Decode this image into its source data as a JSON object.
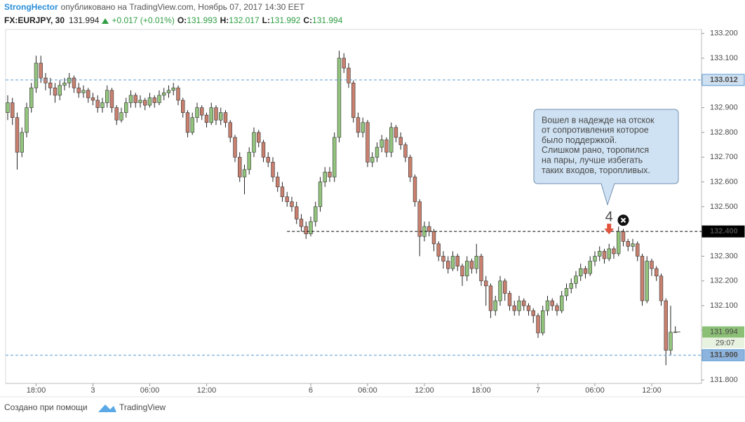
{
  "chart_data": {
    "type": "candlestick",
    "author": "StrongHector",
    "published": "опубликовано на TradingView.com, Ноябрь 07, 2017 14:30 EET",
    "symbol": "FX:EURJPY, 30",
    "last": "131.994",
    "change": "+0.017 (+0.01%)",
    "ohlc_labels": [
      "O:",
      "H:",
      "L:",
      "C:"
    ],
    "ohlc_values": [
      "131.993",
      "132.017",
      "131.992",
      "131.994"
    ],
    "up_color": "#93c47d",
    "down_color": "#c9806f",
    "xlim": [
      -0.44,
      146.52
    ],
    "ylim": [
      131.786,
      133.216
    ],
    "xticks": [
      {
        "value": 6,
        "label": "18:00"
      },
      {
        "value": 18,
        "label": "3"
      },
      {
        "value": 30,
        "label": "06:00"
      },
      {
        "value": 42,
        "label": "12:00"
      },
      {
        "value": 64,
        "label": "6"
      },
      {
        "value": 76,
        "label": "06:00"
      },
      {
        "value": 88,
        "label": "12:00"
      },
      {
        "value": 100,
        "label": "18:00"
      },
      {
        "value": 112,
        "label": "7"
      },
      {
        "value": 124,
        "label": "06:00"
      },
      {
        "value": 136,
        "label": "12:00"
      }
    ],
    "yticks": [
      {
        "value": 131.8,
        "label": "131.800"
      },
      {
        "value": 131.9,
        "label": "131.900"
      },
      {
        "value": 132.0,
        "label": "132.000"
      },
      {
        "value": 132.1,
        "label": "132.100"
      },
      {
        "value": 132.2,
        "label": "132.200"
      },
      {
        "value": 132.3,
        "label": "132.300"
      },
      {
        "value": 132.4,
        "label": "132.400"
      },
      {
        "value": 132.5,
        "label": "132.500"
      },
      {
        "value": 132.6,
        "label": "132.600"
      },
      {
        "value": 132.7,
        "label": "132.700"
      },
      {
        "value": 132.8,
        "label": "132.800"
      },
      {
        "value": 132.9,
        "label": "132.900"
      },
      {
        "value": 133.0,
        "label": "133.000"
      },
      {
        "value": 133.1,
        "label": "133.100"
      },
      {
        "value": 133.2,
        "label": "133.200"
      }
    ],
    "open": [
      132.88,
      132.92,
      132.86,
      132.72,
      132.8,
      132.9,
      132.98,
      133.08,
      133.02,
      133.0,
      132.98,
      132.95,
      132.99,
      133.0,
      133.02,
      132.98,
      132.96,
      132.97,
      132.94,
      132.93,
      132.9,
      132.92,
      132.97,
      132.9,
      132.85,
      132.88,
      132.92,
      132.95,
      132.92,
      132.93,
      132.91,
      132.94,
      132.92,
      132.95,
      132.96,
      132.97,
      132.98,
      132.93,
      132.88,
      132.8,
      132.86,
      132.9,
      132.87,
      132.84,
      132.9,
      132.85,
      132.88,
      132.84,
      132.78,
      132.7,
      132.62,
      132.65,
      132.72,
      132.8,
      132.76,
      132.7,
      132.68,
      132.62,
      132.58,
      132.54,
      132.52,
      132.5,
      132.45,
      132.42,
      132.39,
      132.44,
      132.5,
      132.6,
      132.64,
      132.62,
      132.78,
      133.1,
      133.06,
      133.0,
      132.86,
      132.8,
      132.84,
      132.68,
      132.7,
      132.74,
      132.77,
      132.72,
      132.82,
      132.78,
      132.75,
      132.7,
      132.62,
      132.52,
      132.38,
      132.42,
      132.4,
      132.35,
      132.3,
      132.28,
      132.25,
      132.3,
      132.26,
      132.22,
      132.28,
      132.25,
      132.3,
      132.2,
      132.18,
      132.08,
      132.12,
      132.2,
      132.15,
      132.1,
      132.08,
      132.12,
      132.1,
      132.08,
      132.06,
      131.99,
      132.08,
      132.12,
      132.1,
      132.08,
      132.14,
      132.17,
      132.19,
      132.22,
      132.25,
      132.23,
      132.28,
      132.3,
      132.32,
      132.29,
      132.33,
      132.31,
      132.4,
      132.36,
      132.34,
      132.35,
      132.3,
      132.12,
      132.28,
      132.25,
      132.22,
      132.12,
      131.92,
      131.993
    ],
    "high": [
      132.95,
      132.94,
      132.88,
      132.82,
      132.92,
      133.0,
      133.11,
      133.11,
      133.04,
      133.02,
      133.0,
      133.01,
      133.02,
      133.04,
      133.03,
      133.0,
      132.99,
      132.98,
      132.96,
      132.95,
      132.94,
      132.99,
      132.98,
      132.91,
      132.9,
      132.94,
      132.97,
      132.96,
      132.95,
      132.94,
      132.96,
      132.95,
      132.97,
      132.98,
      132.99,
      133.0,
      132.99,
      132.94,
      132.89,
      132.88,
      132.92,
      132.91,
      132.88,
      132.92,
      132.91,
      132.9,
      132.89,
      132.85,
      132.79,
      132.72,
      132.67,
      132.74,
      132.82,
      132.81,
      132.77,
      132.72,
      132.7,
      132.64,
      132.6,
      132.56,
      132.54,
      132.52,
      132.47,
      132.44,
      132.46,
      132.52,
      132.62,
      132.66,
      132.66,
      132.8,
      133.13,
      133.12,
      133.08,
      133.01,
      132.88,
      132.86,
      132.85,
      132.72,
      132.76,
      132.79,
      132.78,
      132.84,
      132.83,
      132.8,
      132.76,
      132.71,
      132.63,
      132.53,
      132.44,
      132.44,
      132.41,
      132.36,
      132.32,
      132.3,
      132.32,
      132.31,
      132.27,
      132.3,
      132.29,
      132.35,
      132.31,
      132.22,
      132.19,
      132.14,
      132.22,
      132.21,
      132.16,
      132.12,
      132.14,
      132.13,
      132.11,
      132.09,
      132.07,
      132.1,
      132.14,
      132.13,
      132.11,
      132.16,
      132.19,
      132.21,
      132.24,
      132.27,
      132.26,
      132.3,
      132.32,
      132.34,
      132.33,
      132.35,
      132.34,
      132.42,
      132.41,
      132.37,
      132.37,
      132.36,
      132.31,
      132.3,
      132.29,
      132.26,
      132.23,
      132.13,
      132.1,
      132.017
    ],
    "low": [
      132.85,
      132.83,
      132.65,
      132.7,
      132.78,
      132.88,
      132.96,
      133.0,
      132.97,
      132.95,
      132.92,
      132.93,
      132.97,
      132.98,
      132.96,
      132.94,
      132.94,
      132.92,
      132.91,
      132.88,
      132.88,
      132.9,
      132.88,
      132.83,
      132.84,
      132.86,
      132.9,
      132.9,
      132.9,
      132.89,
      132.9,
      132.9,
      132.91,
      132.93,
      132.94,
      132.95,
      132.91,
      132.86,
      132.78,
      132.79,
      132.84,
      132.85,
      132.82,
      132.83,
      132.83,
      132.83,
      132.82,
      132.76,
      132.68,
      132.6,
      132.55,
      132.63,
      132.7,
      132.74,
      132.68,
      132.66,
      132.6,
      132.56,
      132.52,
      132.5,
      132.48,
      132.43,
      132.4,
      132.37,
      132.38,
      132.42,
      132.48,
      132.58,
      132.6,
      132.6,
      132.76,
      133.04,
      132.98,
      132.84,
      132.78,
      132.78,
      132.66,
      132.66,
      132.68,
      132.72,
      132.7,
      132.7,
      132.76,
      132.73,
      132.68,
      132.6,
      132.5,
      132.3,
      132.36,
      132.38,
      132.32,
      132.28,
      132.25,
      132.23,
      132.24,
      132.24,
      132.18,
      132.2,
      132.23,
      132.23,
      132.18,
      132.1,
      132.05,
      132.06,
      132.1,
      132.12,
      132.08,
      132.06,
      132.06,
      132.08,
      132.06,
      132.03,
      131.97,
      131.98,
      132.06,
      132.08,
      132.06,
      132.07,
      132.12,
      132.15,
      132.17,
      132.2,
      132.21,
      132.22,
      132.26,
      132.28,
      132.27,
      132.28,
      132.29,
      132.3,
      132.34,
      132.32,
      132.32,
      132.28,
      132.1,
      132.11,
      132.22,
      132.2,
      132.1,
      131.86,
      131.9,
      131.992
    ],
    "close": [
      132.92,
      132.86,
      132.72,
      132.8,
      132.9,
      132.98,
      133.08,
      133.02,
      133.0,
      132.98,
      132.95,
      132.99,
      133.0,
      133.02,
      132.98,
      132.96,
      132.97,
      132.94,
      132.93,
      132.9,
      132.92,
      132.97,
      132.9,
      132.85,
      132.88,
      132.92,
      132.95,
      132.92,
      132.93,
      132.91,
      132.94,
      132.92,
      132.95,
      132.96,
      132.97,
      132.98,
      132.93,
      132.88,
      132.8,
      132.86,
      132.9,
      132.87,
      132.84,
      132.9,
      132.85,
      132.88,
      132.84,
      132.78,
      132.7,
      132.62,
      132.65,
      132.72,
      132.8,
      132.76,
      132.7,
      132.68,
      132.62,
      132.58,
      132.54,
      132.52,
      132.5,
      132.45,
      132.42,
      132.39,
      132.44,
      132.5,
      132.6,
      132.64,
      132.62,
      132.78,
      133.1,
      133.06,
      133.0,
      132.86,
      132.8,
      132.84,
      132.68,
      132.7,
      132.74,
      132.77,
      132.72,
      132.82,
      132.78,
      132.75,
      132.7,
      132.62,
      132.52,
      132.38,
      132.42,
      132.4,
      132.35,
      132.3,
      132.28,
      132.25,
      132.3,
      132.26,
      132.22,
      132.28,
      132.25,
      132.3,
      132.2,
      132.18,
      132.08,
      132.12,
      132.2,
      132.15,
      132.1,
      132.08,
      132.12,
      132.1,
      132.08,
      132.06,
      131.99,
      132.08,
      132.12,
      132.1,
      132.08,
      132.14,
      132.17,
      132.19,
      132.22,
      132.25,
      132.23,
      132.28,
      132.3,
      132.32,
      132.29,
      132.33,
      132.31,
      132.4,
      132.36,
      132.34,
      132.35,
      132.3,
      132.12,
      132.28,
      132.25,
      132.22,
      132.12,
      131.92,
      131.993,
      131.994
    ],
    "price_lines": [
      {
        "value": 133.012,
        "label": "133.012",
        "color": "#5b9bd5",
        "badge": "#cfe0f1",
        "text_color": "#222222"
      },
      {
        "value": 132.4,
        "label": "132.400",
        "color": "#000000",
        "badge": "#000000",
        "text_color": "#ffffff",
        "x_start": 59
      },
      {
        "value": 131.9,
        "label": "131.900",
        "color": "#5b9bd5",
        "badge": "#8db4de",
        "text_color": "#222222"
      }
    ],
    "last_price": {
      "value": 131.994,
      "label": "131.994",
      "countdown": "29:07",
      "color": "#8cbf76"
    },
    "callout": {
      "lines": [
        "Вошел в надежде на отскок",
        "от сопротивления которое",
        "было поддержкой.",
        "Слишком рано, торопился",
        "на пары, лучше избегать",
        "таких входов, торопливых."
      ],
      "label": "4",
      "x": 127,
      "exit_x": 130,
      "y": 132.4
    },
    "footer": {
      "text": "Создано при помощи",
      "brand": "TradingView"
    }
  }
}
